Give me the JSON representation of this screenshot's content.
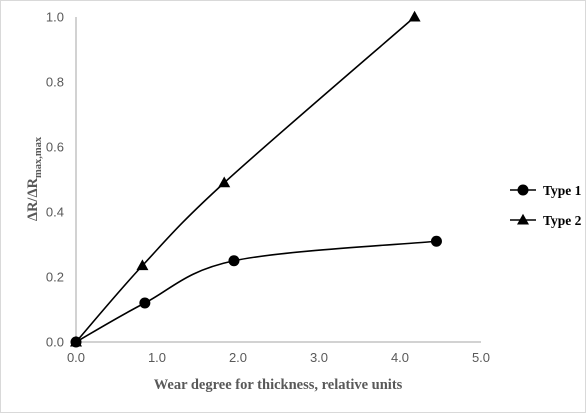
{
  "chart_data": {
    "type": "line",
    "xlabel": "Wear degree for thickness, relative units",
    "ylabel": {
      "base": "ΔR/ΔR",
      "subscript": "max,max"
    },
    "xlim": [
      0.0,
      5.0
    ],
    "ylim": [
      0.0,
      1.0
    ],
    "x_ticks": [
      "0.0",
      "1.0",
      "2.0",
      "3.0",
      "4.0",
      "5.0"
    ],
    "y_ticks": [
      "0.0",
      "0.2",
      "0.4",
      "0.6",
      "0.8",
      "1.0"
    ],
    "grid": false,
    "legend_position": "right",
    "series": [
      {
        "name": "Type 1",
        "marker": "circle",
        "color": "#000000",
        "smooth": true,
        "points": [
          [
            0.0,
            0.0
          ],
          [
            0.85,
            0.12
          ],
          [
            1.95,
            0.25
          ],
          [
            4.45,
            0.31
          ]
        ]
      },
      {
        "name": "Type 2",
        "marker": "triangle",
        "color": "#000000",
        "smooth": true,
        "points": [
          [
            0.0,
            0.0
          ],
          [
            0.82,
            0.235
          ],
          [
            1.83,
            0.49
          ],
          [
            4.18,
            1.0
          ]
        ]
      }
    ]
  }
}
